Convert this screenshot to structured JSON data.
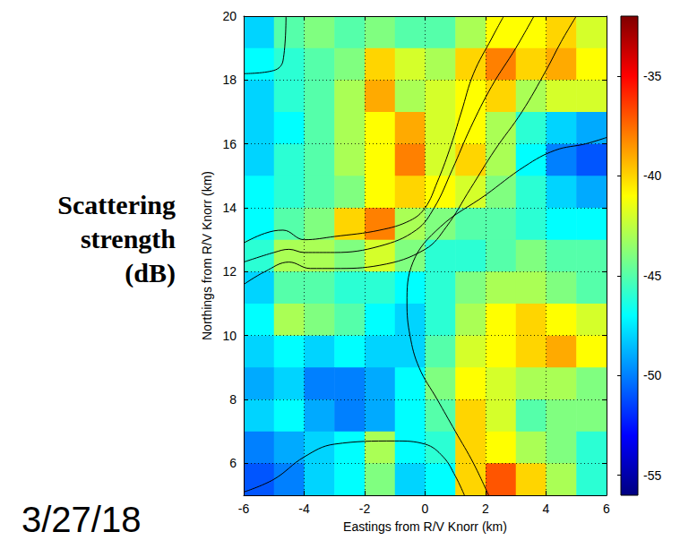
{
  "chart_data": {
    "type": "heatmap",
    "xlabel": "Eastings from R/V Knorr (km)",
    "ylabel": "Northings from R/V Knorr (km)",
    "xlim": [
      -6,
      6
    ],
    "xticks": [
      -6,
      -4,
      -2,
      0,
      2,
      4,
      6
    ],
    "ylim": [
      5,
      20
    ],
    "yticks": [
      6,
      8,
      10,
      12,
      14,
      16,
      18,
      20
    ],
    "grid": true,
    "annotation": "3/27/18",
    "cells": {
      "x": [
        -5.5,
        -4.5,
        -3.5,
        -2.5,
        -1.5,
        -0.5,
        0.5,
        1.5,
        2.5,
        3.5,
        4.5,
        5.5
      ],
      "y": [
        19.5,
        18.5,
        17.5,
        16.5,
        15.5,
        14.5,
        13.5,
        12.5,
        11.5,
        10.5,
        9.5,
        8.5,
        7.5,
        6.5,
        5.5
      ],
      "values": [
        [
          -48,
          -45,
          -44,
          -45,
          -44,
          -45,
          -45,
          -43,
          -41,
          -41,
          -40,
          -42
        ],
        [
          -47,
          -46,
          -45,
          -44,
          -40,
          -42,
          -43,
          -40,
          -38,
          -40,
          -39,
          -41
        ],
        [
          -48,
          -46,
          -45,
          -43,
          -39,
          -43,
          -42,
          -41,
          -40,
          -43,
          -42,
          -42
        ],
        [
          -48,
          -47,
          -45,
          -43,
          -41,
          -39,
          -42,
          -41,
          -43,
          -46,
          -48,
          -49
        ],
        [
          -48,
          -46,
          -45,
          -43,
          -41,
          -38,
          -42,
          -40,
          -43,
          -47,
          -50,
          -51
        ],
        [
          -47,
          -46,
          -45,
          -44,
          -41,
          -40,
          -41,
          -42,
          -44,
          -46,
          -48,
          -49
        ],
        [
          -47,
          -45,
          -44,
          -40,
          -38,
          -43,
          -44,
          -45,
          -45,
          -46,
          -47,
          -47
        ],
        [
          -46,
          -43,
          -43,
          -44,
          -42,
          -44,
          -46,
          -46,
          -45,
          -44,
          -45,
          -45
        ],
        [
          -48,
          -45,
          -45,
          -46,
          -46,
          -47,
          -46,
          -44,
          -43,
          -43,
          -44,
          -45
        ],
        [
          -47,
          -43,
          -44,
          -45,
          -47,
          -48,
          -46,
          -43,
          -41,
          -40,
          -41,
          -42
        ],
        [
          -48,
          -47,
          -48,
          -47,
          -48,
          -48,
          -45,
          -42,
          -41,
          -40,
          -39,
          -41
        ],
        [
          -49,
          -48,
          -50,
          -50,
          -49,
          -47,
          -44,
          -41,
          -42,
          -43,
          -43,
          -44
        ],
        [
          -48,
          -47,
          -49,
          -50,
          -49,
          -47,
          -45,
          -40,
          -42,
          -45,
          -44,
          -44
        ],
        [
          -50,
          -49,
          -48,
          -47,
          -43,
          -47,
          -46,
          -40,
          -41,
          -43,
          -44,
          -46
        ],
        [
          -51,
          -50,
          -48,
          -47,
          -44,
          -48,
          -47,
          -40,
          -37,
          -40,
          -43,
          -46
        ]
      ]
    },
    "colorbar": {
      "label": "Scattering strength (dB)",
      "lim": [
        -56,
        -32
      ],
      "ticks": [
        -55,
        -50,
        -45,
        -40,
        -35
      ]
    },
    "contours": {
      "color": "#000000",
      "lines": [
        [
          [
            -6,
            18.2
          ],
          [
            -5,
            18.3
          ],
          [
            -4.7,
            18.6
          ],
          [
            -4.6,
            20
          ]
        ],
        [
          [
            -6,
            5.1
          ],
          [
            -5,
            5.5
          ],
          [
            -4,
            6.2
          ],
          [
            -3,
            6.6
          ],
          [
            -1,
            6.7
          ],
          [
            0,
            6.6
          ],
          [
            0.6,
            6.2
          ],
          [
            1,
            5.6
          ],
          [
            1.3,
            5
          ]
        ],
        [
          [
            -6,
            12.9
          ],
          [
            -5.3,
            13.2
          ],
          [
            -4.7,
            13.3
          ],
          [
            -4,
            13.0
          ],
          [
            -3,
            13.1
          ],
          [
            -1.5,
            13.3
          ],
          [
            -0.5,
            13.6
          ],
          [
            0,
            14.0
          ],
          [
            0.4,
            14.8
          ],
          [
            0.8,
            15.8
          ],
          [
            1.2,
            17
          ],
          [
            1.6,
            18.2
          ],
          [
            2.2,
            19.3
          ],
          [
            2.6,
            20
          ]
        ],
        [
          [
            -6,
            12.3
          ],
          [
            -5,
            12.6
          ],
          [
            -4.5,
            12.7
          ],
          [
            -4,
            12.6
          ],
          [
            -3,
            12.6
          ],
          [
            -1.5,
            12.8
          ],
          [
            -0.3,
            13.3
          ],
          [
            0.3,
            14.0
          ],
          [
            0.9,
            15.2
          ],
          [
            1.5,
            16.5
          ],
          [
            2.2,
            17.8
          ],
          [
            3,
            19
          ],
          [
            3.6,
            20
          ]
        ],
        [
          [
            -6,
            11.6
          ],
          [
            -5.3,
            12
          ],
          [
            -4.5,
            12.3
          ],
          [
            -3.8,
            12.1
          ],
          [
            -3,
            12.1
          ],
          [
            -1.5,
            12.2
          ],
          [
            0,
            12.7
          ],
          [
            0.7,
            13.4
          ],
          [
            1.5,
            14.6
          ],
          [
            2.3,
            15.8
          ],
          [
            3.2,
            17
          ],
          [
            4,
            18.3
          ],
          [
            4.5,
            19.2
          ],
          [
            5,
            20
          ]
        ],
        [
          [
            6,
            16.2
          ],
          [
            5.3,
            16
          ],
          [
            4.3,
            15.8
          ],
          [
            3.3,
            15.3
          ],
          [
            2,
            14.4
          ],
          [
            0.5,
            13.4
          ],
          [
            -0.4,
            12.3
          ],
          [
            -0.6,
            11
          ],
          [
            -0.5,
            10
          ],
          [
            -0.2,
            9
          ],
          [
            0.4,
            8
          ],
          [
            1,
            7
          ],
          [
            1.6,
            6
          ],
          [
            2.1,
            5
          ]
        ]
      ]
    }
  }
}
